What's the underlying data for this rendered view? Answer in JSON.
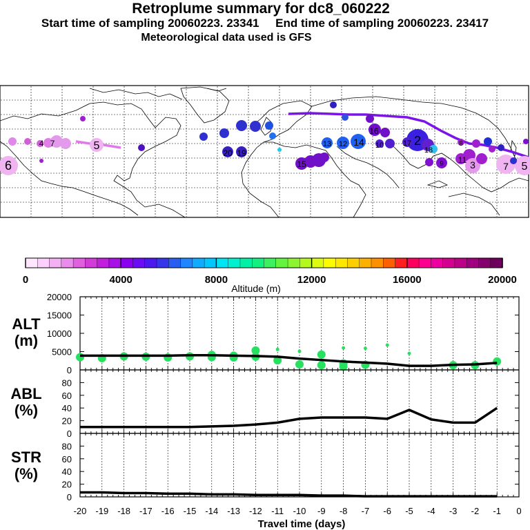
{
  "header": {
    "title": "Retroplume summary for dc8_060222",
    "sampling": "Start time of sampling 20060223. 23341     End time of sampling 20060223. 23417",
    "met": "Meteorological data used is GFS"
  },
  "colorbar": {
    "colors": [
      "#ffe6ff",
      "#fcd0fc",
      "#f3b1f3",
      "#ea8cea",
      "#e060e0",
      "#d23cd8",
      "#c020dc",
      "#a810e8",
      "#8c00f0",
      "#6c0cf4",
      "#4c18f0",
      "#3436e8",
      "#2a5ef0",
      "#2086ff",
      "#10aaff",
      "#00c8ff",
      "#00e4f4",
      "#00f0d0",
      "#00f0a4",
      "#14f080",
      "#3cf060",
      "#64f440",
      "#8cf430",
      "#b4f820",
      "#dcfc10",
      "#fcfc00",
      "#fce800",
      "#fcd000",
      "#fcb000",
      "#fc9000",
      "#fc6000",
      "#fc2020",
      "#fc0060",
      "#fc0090",
      "#ec00a0",
      "#d40090",
      "#bc0088",
      "#a00080",
      "#84006c",
      "#6c005c"
    ],
    "ticks": [
      "0",
      "4000",
      "8000",
      "12000",
      "16000",
      "20000"
    ],
    "label": "Altitude (m)"
  },
  "map": {
    "labels": [
      "6",
      "4",
      "7",
      "5",
      "15",
      "2",
      "14",
      "16",
      "13",
      "12",
      "10",
      "11",
      "9",
      "8",
      "17",
      "18",
      "20",
      "19",
      "3",
      "7",
      "5"
    ]
  },
  "chart_data": [
    {
      "type": "line",
      "panel": "ALT",
      "ylabel_lines": [
        "ALT",
        "(m)"
      ],
      "x": [
        -20,
        -19,
        -18,
        -17,
        -16,
        -15,
        -14,
        -13,
        -12,
        -11,
        -10,
        -9,
        -8,
        -7,
        -6,
        -5,
        -4,
        -3,
        -2,
        -1
      ],
      "series": [
        {
          "name": "Mean altitude",
          "values": [
            3900,
            3900,
            3900,
            3900,
            3900,
            4000,
            4000,
            3900,
            3800,
            3600,
            3100,
            2700,
            2300,
            2000,
            1700,
            1100,
            1100,
            1400,
            1500,
            1900
          ]
        }
      ],
      "scatter": {
        "x": [
          -20,
          -19,
          -18,
          -17,
          -16,
          -15,
          -14,
          -14,
          -13,
          -13,
          -12,
          -12,
          -11,
          -11,
          -10,
          -10,
          -9,
          -9,
          -8,
          -8,
          -8,
          -7,
          -7,
          -6,
          -5,
          -3,
          -2,
          -1
        ],
        "y": [
          3500,
          3200,
          3700,
          3600,
          3400,
          3700,
          4100,
          3500,
          3900,
          3400,
          5300,
          3600,
          5600,
          2600,
          5100,
          1500,
          4200,
          1300,
          6000,
          1800,
          900,
          5900,
          1400,
          6800,
          4500,
          1300,
          1300,
          2300
        ]
      },
      "ylim": [
        0,
        20000
      ],
      "yticks": [
        "0",
        "5000",
        "10000",
        "15000",
        "20000"
      ]
    },
    {
      "type": "line",
      "panel": "ABL",
      "ylabel_lines": [
        "ABL",
        "(%)"
      ],
      "x": [
        -20,
        -19,
        -18,
        -17,
        -16,
        -15,
        -14,
        -13,
        -12,
        -11,
        -10,
        -9,
        -8,
        -7,
        -6,
        -5,
        -4,
        -3,
        -2,
        -1
      ],
      "series": [
        {
          "name": "ABL fraction",
          "values": [
            10,
            10,
            10,
            10,
            10,
            10,
            11,
            12,
            14,
            17,
            23,
            25,
            25,
            25,
            23,
            37,
            22,
            17,
            17,
            40
          ]
        }
      ],
      "ylim": [
        0,
        100
      ],
      "yticks": [
        "0",
        "20",
        "40",
        "60",
        "80"
      ]
    },
    {
      "type": "line",
      "panel": "STR",
      "ylabel_lines": [
        "STR",
        "(%)"
      ],
      "x": [
        -20,
        -19,
        -18,
        -17,
        -16,
        -15,
        -14,
        -13,
        -12,
        -11,
        -10,
        -9,
        -8,
        -7,
        -6,
        -5,
        -4,
        -3,
        -2,
        -1
      ],
      "series": [
        {
          "name": "Stratospheric fraction",
          "values": [
            7,
            7,
            6,
            6,
            5,
            5,
            4,
            4,
            3,
            3,
            3,
            2,
            2,
            1,
            1,
            1,
            1,
            1,
            1,
            1
          ]
        }
      ],
      "ylim": [
        0,
        100
      ],
      "yticks": [
        "0",
        "20",
        "40",
        "60",
        "80"
      ]
    }
  ],
  "xaxis": {
    "ticks": [
      "-20",
      "-19",
      "-18",
      "-17",
      "-16",
      "-15",
      "-14",
      "-13",
      "-12",
      "-11",
      "-10",
      "-9",
      "-8",
      "-7",
      "-6",
      "-5",
      "-4",
      "-3",
      "-2",
      "-1",
      "0"
    ],
    "label": "Travel time (days)"
  }
}
